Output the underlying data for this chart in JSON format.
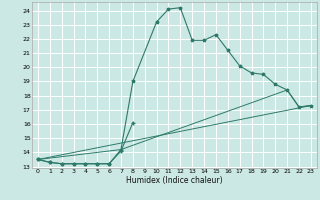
{
  "xlabel": "Humidex (Indice chaleur)",
  "bg_color": "#cce8e4",
  "grid_color": "#ffffff",
  "line_color": "#2d7a6a",
  "xlim": [
    -0.5,
    23.5
  ],
  "ylim": [
    12.9,
    24.6
  ],
  "xticks": [
    0,
    1,
    2,
    3,
    4,
    5,
    6,
    7,
    8,
    9,
    10,
    11,
    12,
    13,
    14,
    15,
    16,
    17,
    18,
    19,
    20,
    21,
    22,
    23
  ],
  "yticks": [
    13,
    14,
    15,
    16,
    17,
    18,
    19,
    20,
    21,
    22,
    23,
    24
  ],
  "series0_x": [
    0,
    1,
    2,
    3,
    4,
    5,
    6,
    7,
    8,
    10,
    11,
    12,
    13,
    14,
    15,
    16,
    17,
    18,
    19,
    20,
    21,
    22,
    23
  ],
  "series0_y": [
    13.5,
    13.3,
    13.2,
    13.2,
    13.2,
    13.2,
    13.2,
    14.2,
    19.0,
    23.2,
    24.1,
    24.2,
    21.9,
    21.9,
    22.3,
    21.2,
    20.1,
    19.6,
    19.5,
    18.8,
    18.4,
    17.2,
    17.3
  ],
  "series1_x": [
    0,
    1,
    2,
    3,
    4,
    5,
    6,
    7,
    8
  ],
  "series1_y": [
    13.5,
    13.3,
    13.2,
    13.2,
    13.2,
    13.2,
    13.2,
    14.1,
    16.1
  ],
  "series2_x": [
    0,
    23
  ],
  "series2_y": [
    13.5,
    17.3
  ],
  "series3_x": [
    0,
    7,
    21,
    22,
    23
  ],
  "series3_y": [
    13.5,
    14.2,
    18.4,
    17.2,
    17.3
  ]
}
